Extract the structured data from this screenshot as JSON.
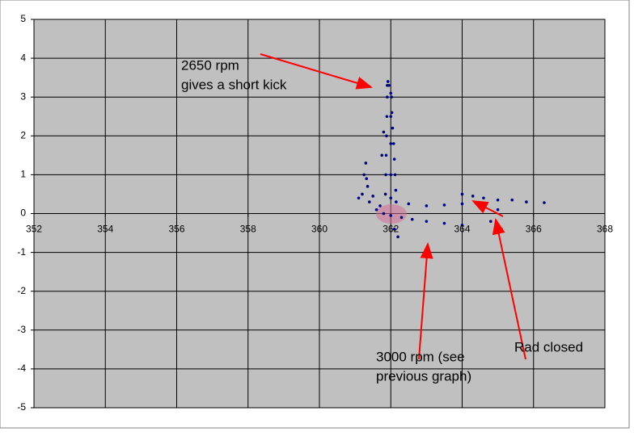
{
  "chart_data": {
    "type": "scatter",
    "annotations": [
      "2650 rpm",
      "gives a short kick",
      "3000 rpm (see",
      "previous graph)",
      "Rad closed"
    ],
    "x": [
      361.1,
      361.2,
      361.25,
      361.3,
      361.32,
      361.35,
      361.4,
      361.5,
      361.7,
      361.85,
      361.86,
      361.87,
      361.88,
      361.89,
      361.9,
      361.9,
      361.92,
      361.95,
      362.0,
      362.02,
      362.03,
      362.05,
      362.08,
      362.1,
      362.12,
      362.14,
      362.15,
      362.0,
      362.0,
      362.0,
      362.0,
      362.5,
      363.0,
      363.5,
      364.0,
      364.0,
      364.3,
      364.6,
      365.0,
      365.4,
      365.8,
      366.3,
      361.6,
      361.8,
      362.0,
      362.3,
      362.6,
      363.0,
      363.5,
      364.0,
      362.1,
      362.2,
      364.8,
      364.9,
      365.0,
      365.1,
      361.75,
      361.8
    ],
    "values": [
      0.4,
      0.5,
      1.0,
      1.3,
      0.9,
      0.7,
      0.3,
      0.45,
      0.2,
      0.5,
      1.0,
      1.5,
      2.0,
      2.5,
      3.0,
      3.3,
      3.4,
      3.3,
      3.1,
      3.0,
      2.6,
      2.2,
      1.8,
      1.4,
      1.0,
      0.6,
      0.3,
      2.5,
      1.8,
      1.0,
      0.4,
      0.25,
      0.2,
      0.22,
      0.25,
      0.5,
      0.45,
      0.4,
      0.35,
      0.35,
      0.3,
      0.28,
      0.1,
      0.0,
      -0.05,
      -0.1,
      -0.15,
      -0.2,
      -0.25,
      -0.3,
      -0.4,
      -0.6,
      -0.2,
      -0.5,
      0.1,
      -0.4,
      1.5,
      2.1
    ],
    "color": "#000080",
    "xlim": [
      352,
      368
    ],
    "xticks": [
      352,
      354,
      356,
      358,
      360,
      362,
      364,
      366,
      368
    ],
    "ylim": [
      -5,
      5
    ],
    "yticks": [
      -5,
      -4,
      -3,
      -2,
      -1,
      0,
      1,
      2,
      3,
      4,
      5
    ],
    "grid": true,
    "background": "#c0c0c0"
  }
}
